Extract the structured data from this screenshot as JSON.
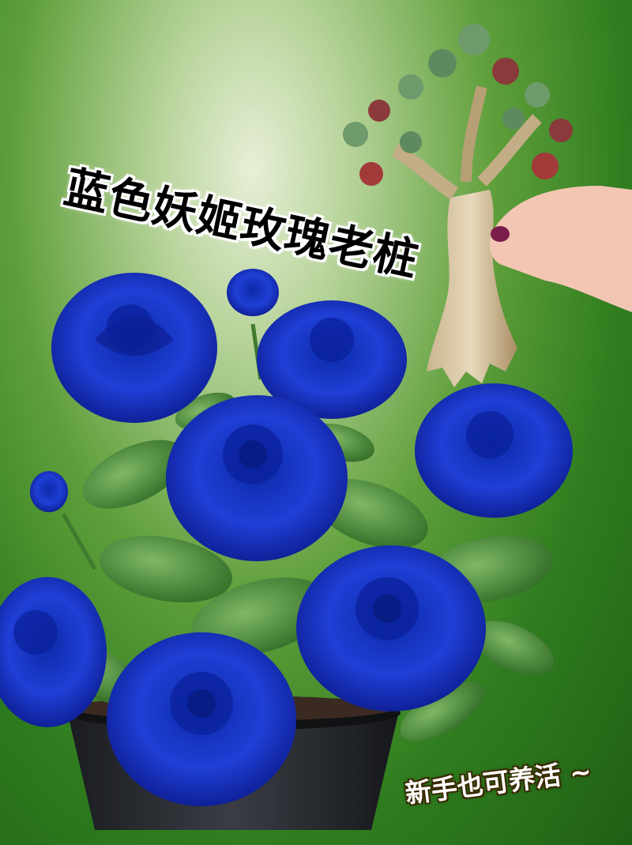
{
  "title": "蓝色妖姬玫瑰老桩",
  "caption": "新手也可养活 ~",
  "colors": {
    "rose_blue": "#1f3fd6",
    "rose_dark": "#0b1a8a",
    "leaf_green": "#4f8a3a",
    "background_green": "#2f7d1f",
    "pot": "#2a2d33"
  },
  "icons": [
    "blue-rose-icon",
    "bonsai-stump-icon",
    "hand-icon",
    "flower-pot-icon"
  ]
}
